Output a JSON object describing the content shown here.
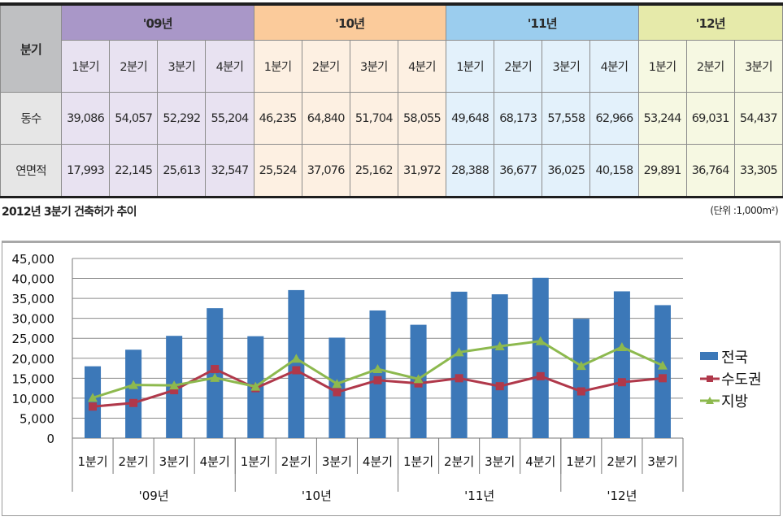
{
  "table": {
    "header_label": "분기",
    "years": [
      {
        "label": "'09년",
        "cls": "y09",
        "quarters": [
          "1분기",
          "2분기",
          "3분기",
          "4분기"
        ]
      },
      {
        "label": "'10년",
        "cls": "y10",
        "quarters": [
          "1분기",
          "2분기",
          "3분기",
          "4분기"
        ]
      },
      {
        "label": "'11년",
        "cls": "y11",
        "quarters": [
          "1분기",
          "2분기",
          "3분기",
          "4분기"
        ]
      },
      {
        "label": "'12년",
        "cls": "y12",
        "quarters": [
          "1분기",
          "2분기",
          "3분기"
        ]
      }
    ],
    "rows": [
      {
        "label": "동수",
        "values": [
          "39,086",
          "54,057",
          "52,292",
          "55,204",
          "46,235",
          "64,840",
          "51,704",
          "58,055",
          "49,648",
          "68,173",
          "57,558",
          "62,966",
          "53,244",
          "69,031",
          "54,437"
        ]
      },
      {
        "label": "연면적",
        "values": [
          "17,993",
          "22,145",
          "25,613",
          "32,547",
          "25,524",
          "37,076",
          "25,162",
          "31,972",
          "28,388",
          "36,677",
          "36,025",
          "40,158",
          "29,891",
          "36,764",
          "33,305"
        ]
      }
    ]
  },
  "caption": "2012년 3분기 건축허가 추이",
  "unit": "(단위 :1,000m²)",
  "chart_data": {
    "type": "bar",
    "title": "2012년 3분기 건축허가 추이",
    "xlabel": "",
    "ylabel": "",
    "ylim": [
      0,
      45000
    ],
    "yticks": [
      "0",
      "5,000",
      "10,000",
      "15,000",
      "20,000",
      "25,000",
      "30,000",
      "35,000",
      "40,000",
      "45,000"
    ],
    "ytick_values": [
      0,
      5000,
      10000,
      15000,
      20000,
      25000,
      30000,
      35000,
      40000,
      45000
    ],
    "grid": true,
    "legend_position": "right",
    "categories": [
      "1분기",
      "2분기",
      "3분기",
      "4분기",
      "1분기",
      "2분기",
      "3분기",
      "4분기",
      "1분기",
      "2분기",
      "3분기",
      "4분기",
      "1분기",
      "2분기",
      "3분기"
    ],
    "groups": [
      {
        "label": "'09년",
        "count": 4
      },
      {
        "label": "'10년",
        "count": 4
      },
      {
        "label": "'11년",
        "count": 4
      },
      {
        "label": "'12년",
        "count": 3
      }
    ],
    "series": [
      {
        "name": "전국",
        "type": "bar",
        "color": "#3c78b8",
        "values": [
          17993,
          22145,
          25613,
          32547,
          25524,
          37076,
          25162,
          31972,
          28388,
          36677,
          36025,
          40158,
          29891,
          36764,
          33305
        ]
      },
      {
        "name": "수도권",
        "type": "line",
        "marker": "square",
        "color": "#b0384a",
        "values": [
          7900,
          8800,
          12000,
          17300,
          12500,
          17000,
          11500,
          14500,
          13700,
          15000,
          13000,
          15500,
          11700,
          14000,
          15000
        ]
      },
      {
        "name": "지방",
        "type": "line",
        "marker": "triangle",
        "color": "#8db94e",
        "values": [
          10100,
          13300,
          13200,
          15100,
          12900,
          19900,
          13600,
          17300,
          14800,
          21500,
          23000,
          24300,
          18100,
          22800,
          18200
        ]
      }
    ]
  }
}
